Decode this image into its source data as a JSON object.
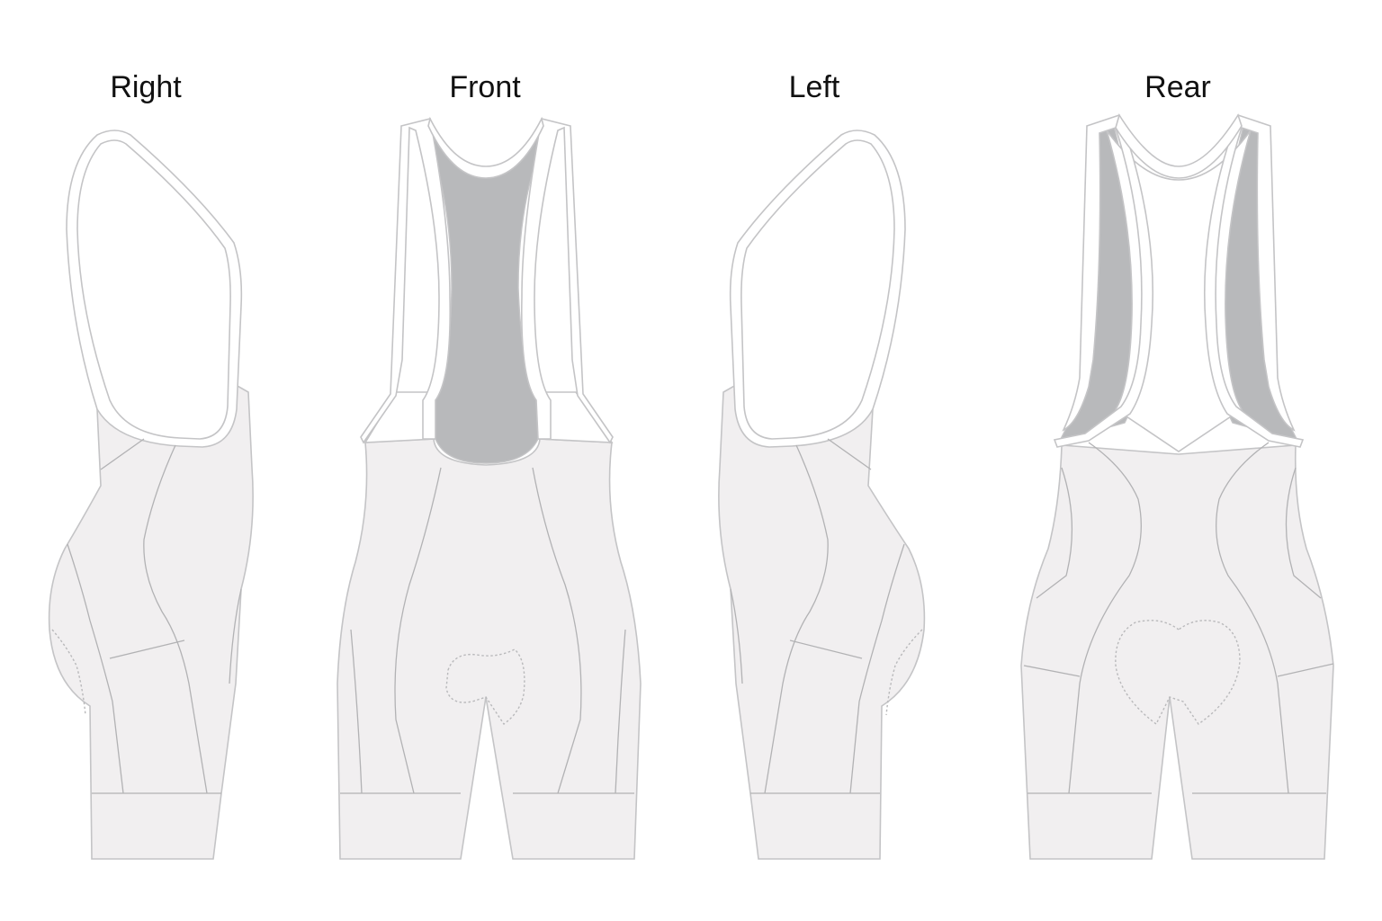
{
  "views": {
    "right": "Right",
    "front": "Front",
    "left": "Left",
    "rear": "Rear"
  },
  "colors": {
    "fabric": "#f1eff0",
    "mesh": "#b8b9bb",
    "outline": "#c4c4c6",
    "label": "#111111"
  }
}
